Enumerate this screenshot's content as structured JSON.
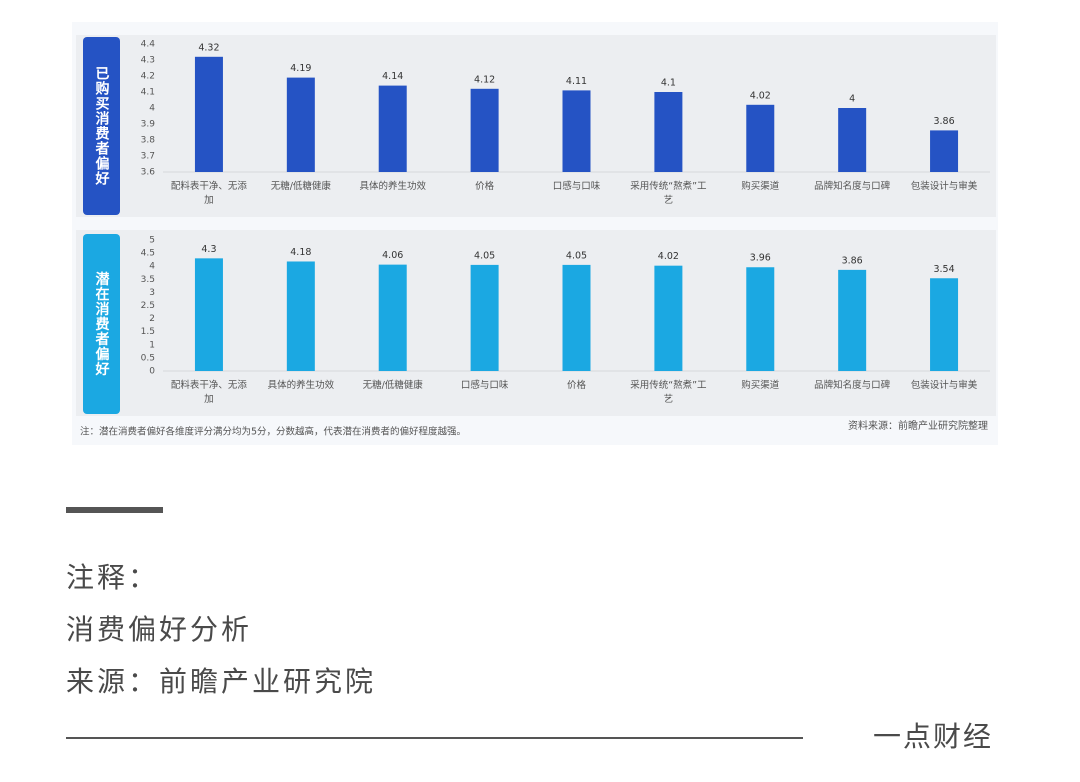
{
  "chart_data": [
    {
      "type": "bar",
      "title": "已购买消费者偏好",
      "color": "#2553c4",
      "categories": [
        "配料表干净、无添加",
        "无糖/低糖健康",
        "具体的养生功效",
        "价格",
        "口感与口味",
        "采用传统“熬煮”工艺",
        "购买渠道",
        "品牌知名度与口碑",
        "包装设计与审美"
      ],
      "values": [
        4.32,
        4.19,
        4.14,
        4.12,
        4.11,
        4.1,
        4.02,
        4,
        3.86
      ],
      "ylim": [
        3.6,
        4.4
      ],
      "yticks": [
        3.6,
        3.7,
        3.8,
        3.9,
        4,
        4.1,
        4.2,
        4.3,
        4.4
      ],
      "grid": false
    },
    {
      "type": "bar",
      "title": "潜在消费者偏好",
      "color": "#1ba8e2",
      "categories": [
        "配料表干净、无添加",
        "具体的养生功效",
        "无糖/低糖健康",
        "口感与口味",
        "价格",
        "采用传统“熬煮”工艺",
        "购买渠道",
        "品牌知名度与口碑",
        "包装设计与审美"
      ],
      "values": [
        4.3,
        4.18,
        4.06,
        4.05,
        4.05,
        4.02,
        3.96,
        3.86,
        3.54
      ],
      "ylim": [
        0,
        5
      ],
      "yticks": [
        0,
        0.5,
        1,
        1.5,
        2,
        2.5,
        3,
        3.5,
        4,
        4.5,
        5
      ],
      "grid": false
    }
  ],
  "note": "注：潜在消费者偏好各维度评分满分均为5分，分数越高，代表潜在消费者的偏好程度越强。",
  "source": "资料来源：前瞻产业研究院整理",
  "caption": {
    "label": "注释：",
    "topic": "消费偏好分析",
    "origin": "来源：前瞻产业研究院"
  },
  "brand": "一点财经"
}
